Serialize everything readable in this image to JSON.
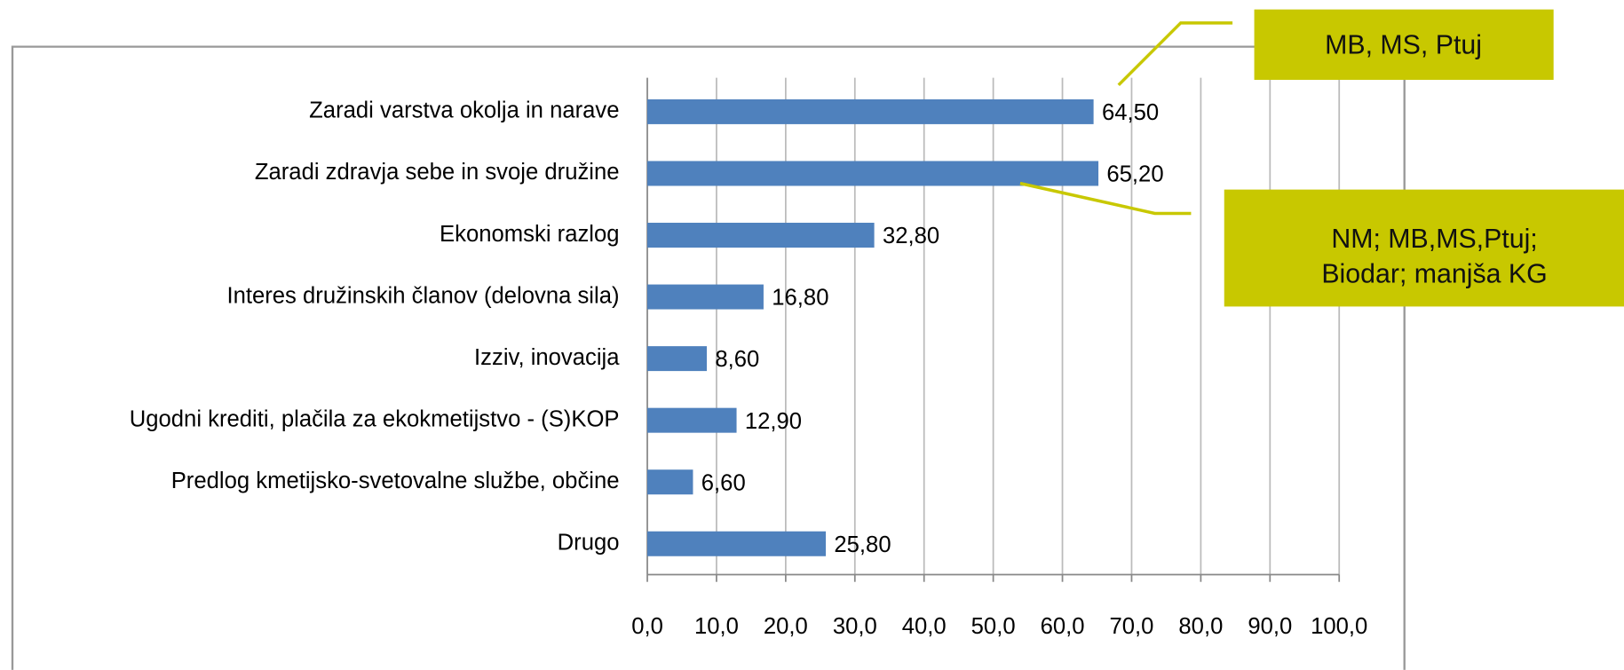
{
  "chart_data": {
    "type": "bar",
    "orientation": "horizontal",
    "categories": [
      "Zaradi varstva okolja in narave",
      "Zaradi zdravja sebe in svoje družine",
      "Ekonomski razlog",
      "Interes družinskih članov (delovna sila)",
      "Izziv, inovacija",
      "Ugodni krediti, plačila za ekokmetijstvo - (S)KOP",
      "Predlog kmetijsko-svetovalne službe, občine",
      "Drugo"
    ],
    "values": [
      64.5,
      65.2,
      32.8,
      16.8,
      8.6,
      12.9,
      6.6,
      25.8
    ],
    "value_labels": [
      "64,50",
      "65,20",
      "32,80",
      "16,80",
      "8,60",
      "12,90",
      "6,60",
      "25,80"
    ],
    "color": "#4f81bd",
    "xlim": [
      0,
      100
    ],
    "xticks": [
      {
        "value": 0,
        "label": "0,0"
      },
      {
        "value": 10,
        "label": "10,0"
      },
      {
        "value": 20,
        "label": "20,0"
      },
      {
        "value": 30,
        "label": "30,0"
      },
      {
        "value": 40,
        "label": "40,0"
      },
      {
        "value": 50,
        "label": "50,0"
      },
      {
        "value": 60,
        "label": "60,0"
      },
      {
        "value": 70,
        "label": "70,0"
      },
      {
        "value": 80,
        "label": "80,0"
      },
      {
        "value": 90,
        "label": "90,0"
      },
      {
        "value": 100,
        "label": "100,0"
      }
    ],
    "grid": true,
    "annotations": [
      "MB, MS, Ptuj",
      [
        "NM; MB,MS,Ptuj;",
        "Biodar; manjša KG"
      ]
    ]
  }
}
